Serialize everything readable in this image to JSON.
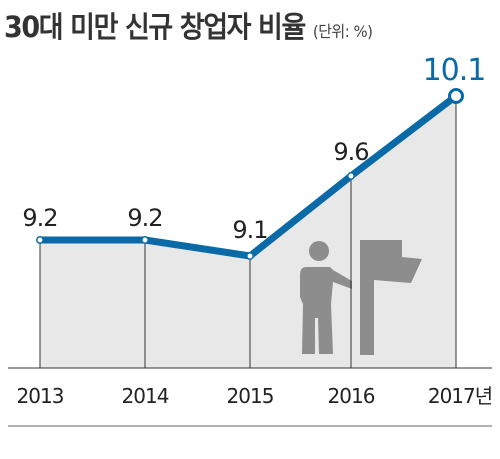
{
  "header": {
    "title": "30대 미만 신규 창업자 비율",
    "unit": "(단위: %)"
  },
  "chart_data": {
    "type": "line",
    "title": "30대 미만 신규 창업자 비율",
    "unit": "(단위: %)",
    "categories": [
      "2013",
      "2014",
      "2015",
      "2016",
      "2017년"
    ],
    "series": [
      {
        "values": [
          9.2,
          9.2,
          9.1,
          9.6,
          10.1
        ]
      }
    ],
    "data_labels": [
      "9.2",
      "9.2",
      "9.1",
      "9.6",
      "10.1"
    ],
    "ylim": [
      8.4,
      10.2
    ],
    "grid": false,
    "colors": {
      "line": "#0a6aa8",
      "highlight_label": "#0a6aa8",
      "area": "#e8e8e9",
      "axis": "#333333",
      "icon": "#8d8d8d"
    }
  }
}
